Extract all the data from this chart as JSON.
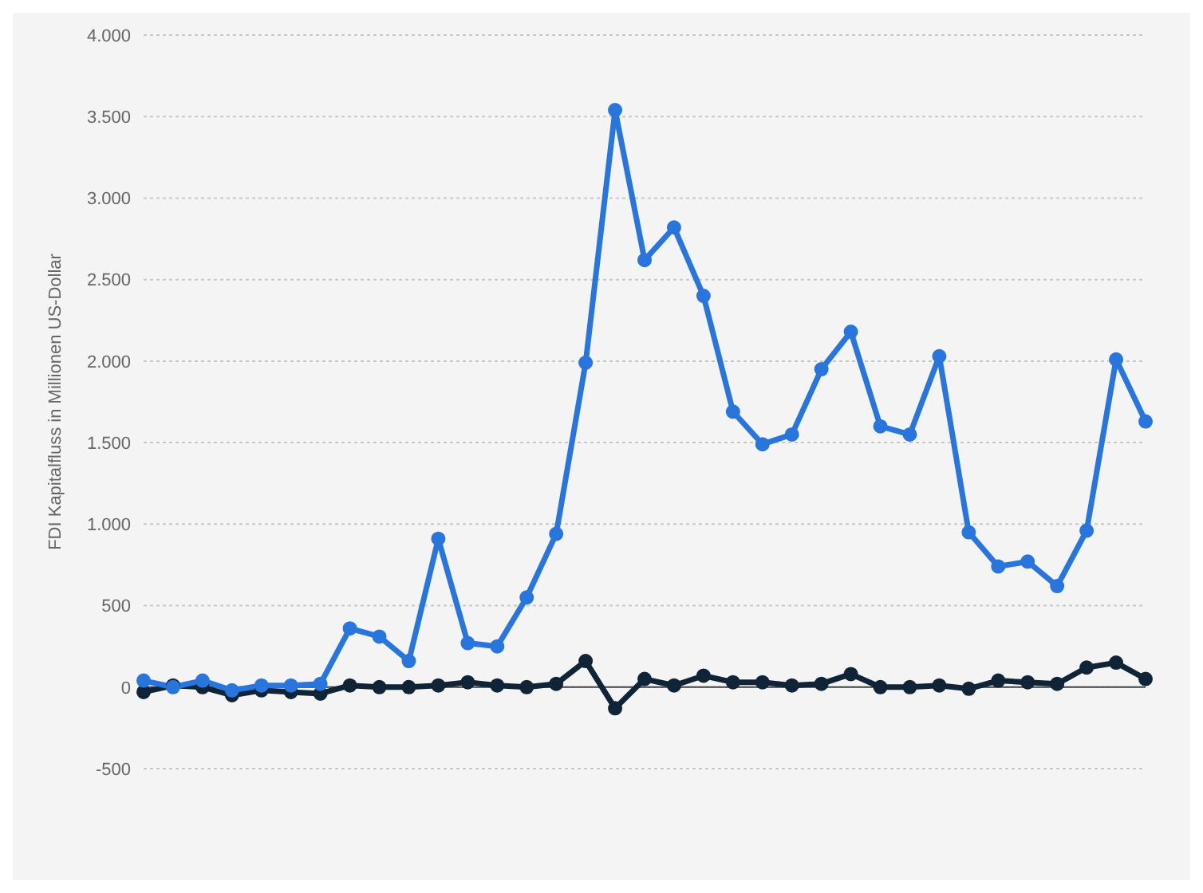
{
  "chart_data": {
    "type": "line",
    "ylabel": "FDI Kapitalfluss in Millionen US-Dollar",
    "categories": [
      null,
      null,
      null,
      null,
      null,
      null,
      null,
      null,
      null,
      null,
      null,
      null,
      null,
      null,
      null,
      null,
      null,
      null,
      null,
      null,
      null,
      null,
      null,
      null,
      null,
      null,
      null,
      null,
      null,
      null,
      null,
      null,
      null,
      null,
      null
    ],
    "series": [
      {
        "color": "#2876dd",
        "values": [
          40,
          0,
          40,
          -20,
          10,
          10,
          20,
          360,
          310,
          160,
          910,
          270,
          250,
          550,
          940,
          1990,
          3540,
          2620,
          2820,
          2400,
          1690,
          1490,
          1550,
          1950,
          2180,
          1600,
          1550,
          2030,
          950,
          740,
          770,
          620,
          960,
          2010,
          1630
        ]
      },
      {
        "color": "#0f2537",
        "values": [
          -30,
          10,
          0,
          -50,
          -20,
          -30,
          -40,
          10,
          0,
          0,
          10,
          30,
          10,
          0,
          20,
          160,
          -130,
          50,
          10,
          70,
          30,
          30,
          10,
          20,
          80,
          0,
          0,
          10,
          -10,
          40,
          30,
          20,
          120,
          150,
          50
        ]
      }
    ],
    "ylim": [
      -500,
      4000
    ],
    "yticks": [
      {
        "value": -500,
        "label": "-500"
      },
      0,
      500,
      {
        "value": 1000,
        "label": "1.000"
      },
      {
        "value": 1500,
        "label": "1.500"
      },
      {
        "value": 2000,
        "label": "2.000"
      },
      {
        "value": 2500,
        "label": "2.500"
      },
      {
        "value": 3000,
        "label": "3.000"
      },
      {
        "value": 3500,
        "label": "3.500"
      },
      {
        "value": 4000,
        "label": "4.000"
      }
    ],
    "grid": "y",
    "legend": false,
    "marker": "circle",
    "line_style": "solid",
    "tick_labels": "y",
    "ref_lines": [
      {
        "axis": "y",
        "value": 0,
        "color": "#444444"
      }
    ]
  }
}
